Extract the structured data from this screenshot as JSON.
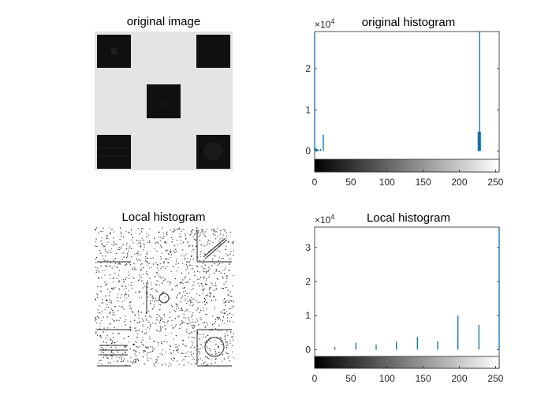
{
  "panels": {
    "original_image": {
      "title": "original image"
    },
    "local_image": {
      "title": "Local histogram"
    }
  },
  "chart_data": [
    {
      "type": "bar",
      "title": "original histogram",
      "xlabel": "",
      "ylabel": "",
      "xlim": [
        0,
        255
      ],
      "ylim": [
        -2000,
        29000
      ],
      "y_exponent_label": "×10",
      "y_exponent_power": "4",
      "xticks": [
        0,
        50,
        100,
        150,
        200,
        250
      ],
      "xtick_labels": [
        "0",
        "50",
        "100",
        "150",
        "200",
        "250"
      ],
      "yticks": [
        0,
        10000,
        20000
      ],
      "ytick_labels": [
        "0",
        "1",
        "2"
      ],
      "colorbar": true,
      "bar_color": "#0072bd",
      "x": [
        0,
        1,
        2,
        3,
        4,
        5,
        8,
        12,
        226,
        227,
        228,
        229
      ],
      "values": [
        29000,
        700,
        600,
        500,
        400,
        300,
        500,
        4000,
        4700,
        4700,
        29000,
        4700
      ]
    },
    {
      "type": "bar",
      "title": "Local histogram",
      "xlabel": "",
      "ylabel": "",
      "xlim": [
        0,
        255
      ],
      "ylim": [
        -2000,
        36000
      ],
      "y_exponent_label": "×10",
      "y_exponent_power": "4",
      "xticks": [
        0,
        50,
        100,
        150,
        200,
        250
      ],
      "xtick_labels": [
        "0",
        "50",
        "100",
        "150",
        "200",
        "250"
      ],
      "yticks": [
        0,
        10000,
        20000,
        30000
      ],
      "ytick_labels": [
        "0",
        "1",
        "2",
        "3"
      ],
      "colorbar": true,
      "bar_color": "#0072bd",
      "x": [
        0,
        28,
        57,
        85,
        113,
        142,
        170,
        198,
        227,
        255
      ],
      "values": [
        100,
        700,
        2000,
        1500,
        2300,
        3700,
        2500,
        10000,
        7300,
        36000
      ]
    }
  ]
}
